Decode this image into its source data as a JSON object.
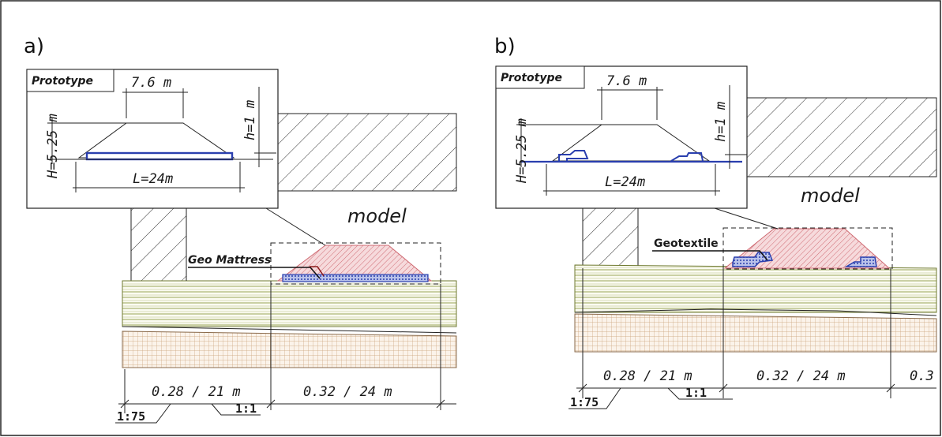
{
  "panels": [
    {
      "label": "a)",
      "prototype_label": "Prototype",
      "crest_width": "7.6  m",
      "height_H": "H=5.25 m",
      "height_h": "h=1 m",
      "length_L": "L=24m",
      "model_label": "model",
      "layer_label": "Geo Mattress",
      "dim_left": "0.28  /  21  m",
      "dim_right": "0.32  /  24  m",
      "scale_prototype": "1:75",
      "scale_model": "1:1"
    },
    {
      "label": "b)",
      "prototype_label": "Prototype",
      "crest_width": "7.6  m",
      "height_H": "H=5.25 m",
      "height_h": "h=1 m",
      "length_L": "L=24m",
      "model_label": "model",
      "layer_label": "Geotextile",
      "dim_left": "0.28  /  21  m",
      "dim_right": "0.32  /  24  m",
      "dim_far": "0.3",
      "scale_prototype": "1:75",
      "scale_model": "1:1"
    }
  ],
  "colors": {
    "structure_hatch": "#cf6b73",
    "structure_fill": "#f6dadc",
    "mattress_blue": "#2a3fae",
    "sand_layer": "#8f9a44",
    "clay_grid": "#c9a077",
    "line": "#222222"
  }
}
